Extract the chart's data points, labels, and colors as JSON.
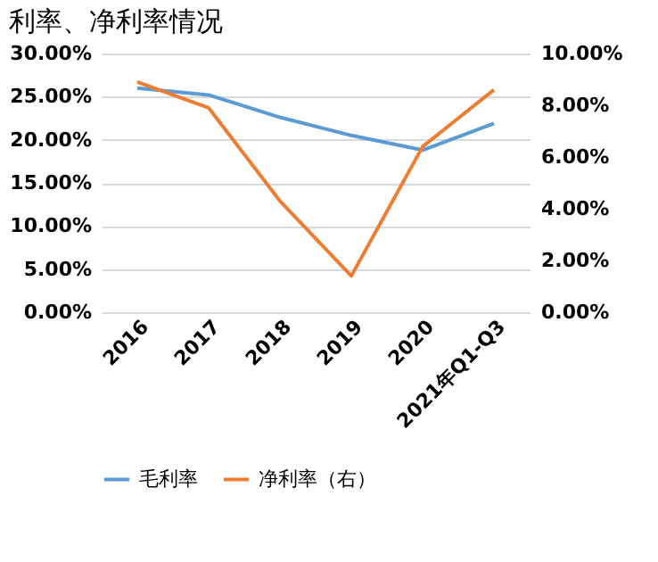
{
  "chart_data": {
    "type": "line",
    "title": "利率、净利率情况",
    "categories": [
      "2016",
      "2017",
      "2018",
      "2019",
      "2020",
      "2021年Q1-Q3"
    ],
    "series": [
      {
        "name": "毛利率",
        "color": "#5b9bd5",
        "values": [
          26.0,
          25.2,
          22.6,
          20.5,
          18.8,
          21.9
        ]
      },
      {
        "name": "净利率（右）",
        "color": "#ed7d31",
        "axis": "y2",
        "values": [
          8.9,
          7.9,
          4.3,
          1.4,
          6.4,
          8.6
        ]
      }
    ],
    "ylim": [
      0,
      30
    ],
    "yticks": [
      {
        "value": 0,
        "label": "0.00%"
      },
      {
        "value": 5,
        "label": "5.00%"
      },
      {
        "value": 10,
        "label": "10.00%"
      },
      {
        "value": 15,
        "label": "15.00%"
      },
      {
        "value": 20,
        "label": "20.00%"
      },
      {
        "value": 25,
        "label": "25.00%"
      },
      {
        "value": 30,
        "label": "30.00%"
      }
    ],
    "y2lim": [
      0,
      10
    ],
    "y2ticks": [
      {
        "value": 0,
        "label": "0.00%"
      },
      {
        "value": 2,
        "label": "2.00%"
      },
      {
        "value": 4,
        "label": "4.00%"
      },
      {
        "value": 6,
        "label": "6.00%"
      },
      {
        "value": 8,
        "label": "8.00%"
      },
      {
        "value": 10,
        "label": "10.00%"
      }
    ],
    "grid": "y",
    "legend": "bottom",
    "marker": "none",
    "line_style": "solid"
  }
}
